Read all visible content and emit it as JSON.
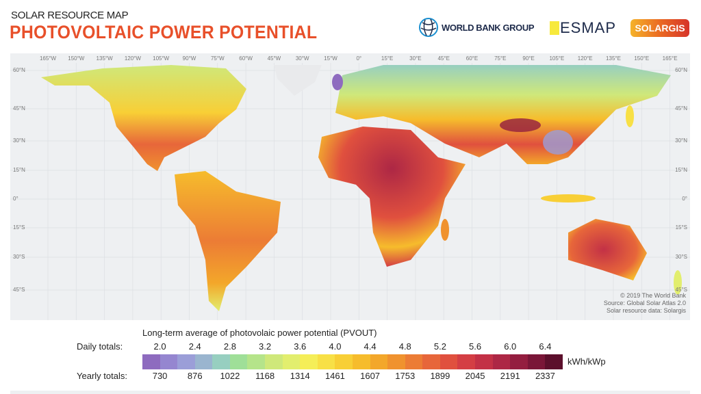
{
  "header": {
    "subtitle": "SOLAR RESOURCE MAP",
    "title": "PHOTOVOLTAIC POWER POTENTIAL",
    "logos": [
      "WORLD BANK GROUP",
      "ESMAP",
      "SOLARGIS"
    ]
  },
  "map": {
    "longitude_labels": [
      "165°W",
      "150°W",
      "135°W",
      "120°W",
      "105°W",
      "90°W",
      "75°W",
      "60°W",
      "45°W",
      "30°W",
      "15°W",
      "0°",
      "15°E",
      "30°E",
      "45°E",
      "60°E",
      "75°E",
      "90°E",
      "105°E",
      "120°E",
      "135°E",
      "150°E",
      "165°E"
    ],
    "latitude_labels": [
      "60°N",
      "45°N",
      "30°N",
      "15°N",
      "0°",
      "15°S",
      "30°S",
      "45°S"
    ],
    "credits": [
      "© 2019 The World Bank",
      "Source: Global Solar Atlas 2.0",
      "Solar resource data: Solargis"
    ]
  },
  "legend": {
    "title": "Long-term average of photovolaic power potential (PVOUT)",
    "daily_label": "Daily totals:",
    "yearly_label": "Yearly totals:",
    "daily_ticks": [
      "2.0",
      "2.4",
      "2.8",
      "3.2",
      "3.6",
      "4.0",
      "4.4",
      "4.8",
      "5.2",
      "5.6",
      "6.0",
      "6.4"
    ],
    "yearly_ticks": [
      "730",
      "876",
      "1022",
      "1168",
      "1314",
      "1461",
      "1607",
      "1753",
      "1899",
      "2045",
      "2191",
      "2337"
    ],
    "unit": "kWh/kWp",
    "colors": [
      "#8e6bbf",
      "#9586d0",
      "#9b9ed8",
      "#9ab5cf",
      "#97cfc0",
      "#9fdf98",
      "#b5e48a",
      "#cfe87a",
      "#e2ee6e",
      "#f5ee58",
      "#f8e046",
      "#f8cf36",
      "#f6bc2c",
      "#f3a72a",
      "#f0922e",
      "#ec7c35",
      "#e7663a",
      "#e0503e",
      "#d43e44",
      "#c33146",
      "#ad2745",
      "#941e40",
      "#7a1638",
      "#5c0f2c"
    ]
  }
}
